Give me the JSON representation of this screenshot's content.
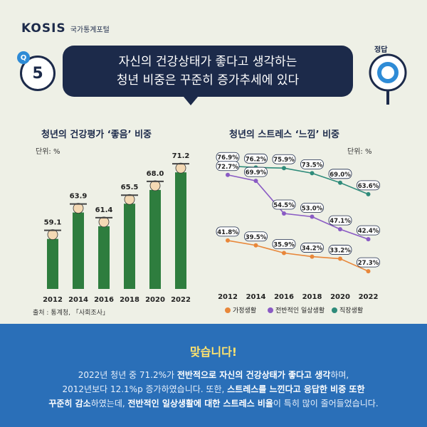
{
  "header": {
    "logo_main": "KOSIS",
    "logo_sub": "국가통계포털"
  },
  "question": {
    "badge": "5",
    "small_badge": "Q",
    "line1": "자신의 건강상태가 좋다고 생각하는",
    "line2": "청년 비중은 꾸준히 증가추세에 있다"
  },
  "answer_label": "정답",
  "left_panel": {
    "title": "청년의 건강평가 ‘좋음’ 비중",
    "unit": "단위: %"
  },
  "right_panel": {
    "title": "청년의 스트레스 ‘느낌’ 비중",
    "unit": "단위: %"
  },
  "source": "출처 : 통계청, 「사회조사」",
  "chart_data": [
    {
      "type": "bar",
      "title": "청년의 건강평가 ‘좋음’ 비중",
      "unit": "단위: %",
      "categories": [
        "2012",
        "2014",
        "2016",
        "2018",
        "2020",
        "2022"
      ],
      "values": [
        59.1,
        63.9,
        61.4,
        65.5,
        68.0,
        71.2
      ],
      "value_labels": [
        "59.1",
        "63.9",
        "61.4",
        "65.5",
        "68.0",
        "71.2"
      ],
      "ylim": [
        50,
        72
      ],
      "color": "#2e7d3e"
    },
    {
      "type": "line",
      "title": "청년의 스트레스 ‘느낌’ 비중",
      "unit": "단위: %",
      "categories": [
        "2012",
        "2014",
        "2016",
        "2018",
        "2020",
        "2022"
      ],
      "ylim": [
        25,
        80
      ],
      "series": [
        {
          "name": "직장생활",
          "values": [
            76.9,
            76.2,
            75.9,
            73.5,
            69.0,
            63.6
          ],
          "labels": [
            "76.9%",
            "76.2%",
            "75.9%",
            "73.5%",
            "69.0%",
            "63.6%"
          ],
          "color": "#2e8b7a"
        },
        {
          "name": "전반적인 일상생활",
          "values": [
            72.7,
            69.9,
            54.5,
            53.0,
            47.1,
            42.4
          ],
          "labels": [
            "72.7%",
            "69.9%",
            "54.5%",
            "53.0%",
            "47.1%",
            "42.4%"
          ],
          "color": "#8a5bc4"
        },
        {
          "name": "가정생활",
          "values": [
            41.8,
            39.5,
            35.9,
            34.2,
            33.2,
            27.3
          ],
          "labels": [
            "41.8%",
            "39.5%",
            "35.9%",
            "34.2%",
            "33.2%",
            "27.3%"
          ],
          "color": "#e8873a"
        }
      ],
      "legend_order": [
        "가정생활",
        "전반적인 일상생활",
        "직장생활"
      ],
      "legend_position": "bottom"
    }
  ],
  "bottom": {
    "heading": "맞습니다!",
    "p1_a": "2022년 청년 중 71.2%가 ",
    "p1_b": "전반적으로 자신의 건강상태가 좋다고 생각",
    "p1_c": "하며,",
    "p2_a": "2012년보다 12.1%p 증가하였습니다. 또한, ",
    "p2_b": "스트레스를 느낀다고 응답한 비중 또한",
    "p3_a": "꾸준히 감소",
    "p3_b": "하였는데, ",
    "p3_c": "전반적인 일상생활에 대한 스트레스 비율",
    "p3_d": "이 특히 많이 줄어들었습니다."
  }
}
